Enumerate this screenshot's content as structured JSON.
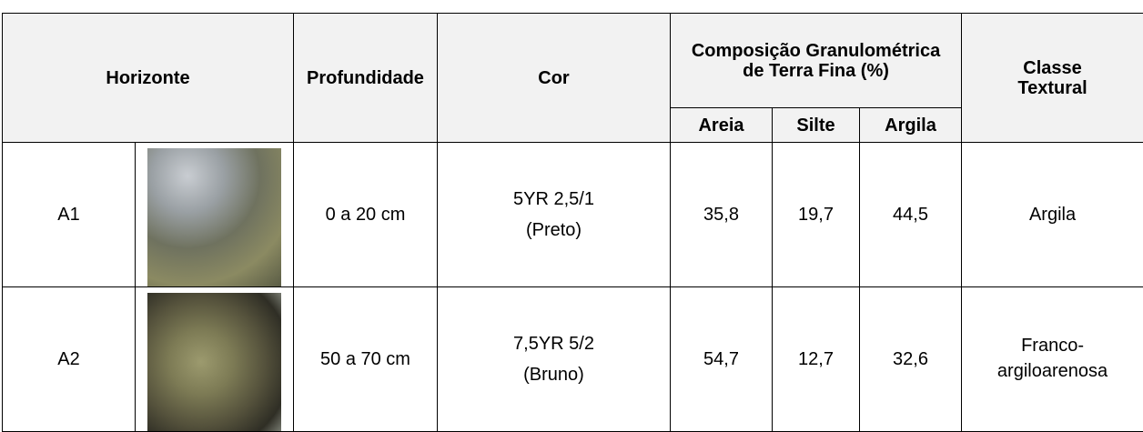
{
  "table": {
    "header": {
      "horizonte": "Horizonte",
      "profundidade": "Profundidade",
      "cor": "Cor",
      "composicao": "Composição Granulométrica de Terra Fina (%)",
      "classe": "Classe Textural",
      "sub": [
        "Areia",
        "Silte",
        "Argila"
      ]
    },
    "rows": [
      {
        "horizonte": "A1",
        "profundidade": "0 a 20 cm",
        "cor": [
          "5YR 2,5/1",
          "(Preto)"
        ],
        "valores": [
          "35,8",
          "19,7",
          "44,5"
        ],
        "classe": "Argila"
      },
      {
        "horizonte": "A2",
        "profundidade": "50 a 70 cm",
        "cor": [
          "7,5YR 5/2",
          "(Bruno)"
        ],
        "valores": [
          "54,7",
          "12,7",
          "32,6"
        ],
        "classe": "Franco-argiloarenosa"
      }
    ]
  }
}
